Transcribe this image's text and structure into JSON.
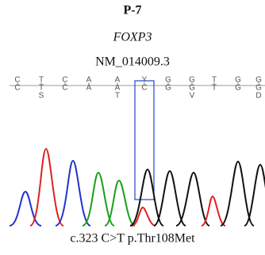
{
  "title": "P-7",
  "gene": "FOXP3",
  "transcript": "NM_014009.3",
  "columns": [
    {
      "calls": [
        "C",
        "C"
      ]
    },
    {
      "calls": [
        "T",
        "T",
        "S"
      ]
    },
    {
      "calls": [
        "C",
        "C"
      ]
    },
    {
      "calls": [
        "A",
        "A"
      ]
    },
    {
      "calls": [
        "A",
        "A",
        "T"
      ]
    },
    {
      "calls": [
        "Y",
        "C"
      ]
    },
    {
      "calls": [
        "G",
        "G"
      ]
    },
    {
      "calls": [
        "G",
        "G",
        "V"
      ]
    },
    {
      "calls": [
        "T",
        "T"
      ]
    },
    {
      "calls": [
        "G",
        "G"
      ]
    },
    {
      "calls": [
        "G",
        "G",
        "D"
      ]
    }
  ],
  "caption": "c.323 C>T p.Thr108Met"
}
